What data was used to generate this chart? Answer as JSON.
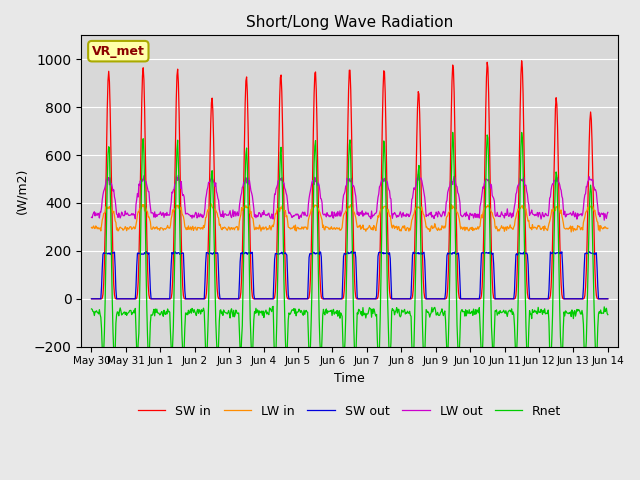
{
  "title": "Short/Long Wave Radiation",
  "xlabel": "Time",
  "ylabel": "(W/m2)",
  "ylim": [
    -200,
    1100
  ],
  "yticks": [
    -200,
    0,
    200,
    400,
    600,
    800,
    1000
  ],
  "num_days": 15,
  "background_color": "#e8e8e8",
  "plot_bg_color": "#d8d8d8",
  "colors": {
    "SW_in": "#ff0000",
    "LW_in": "#ff8c00",
    "SW_out": "#0000dd",
    "LW_out": "#cc00cc",
    "Rnet": "#00cc00"
  },
  "legend_labels": [
    "SW in",
    "LW in",
    "SW out",
    "LW out",
    "Rnet"
  ],
  "annotation_text": "VR_met",
  "annotation_color": "#8B0000",
  "annotation_bg": "#ffffaa",
  "xticklabels": [
    "May 30",
    "May 31",
    "Jun 1",
    "Jun 2",
    "Jun 3",
    "Jun 4",
    "Jun 5",
    "Jun 6",
    "Jun 7",
    "Jun 8",
    "Jun 9",
    "Jun 10",
    "Jun 11",
    "Jun 12",
    "Jun 13",
    "Jun 14"
  ],
  "xtick_positions": [
    0,
    1,
    2,
    3,
    4,
    5,
    6,
    7,
    8,
    9,
    10,
    11,
    12,
    13,
    14,
    15
  ]
}
